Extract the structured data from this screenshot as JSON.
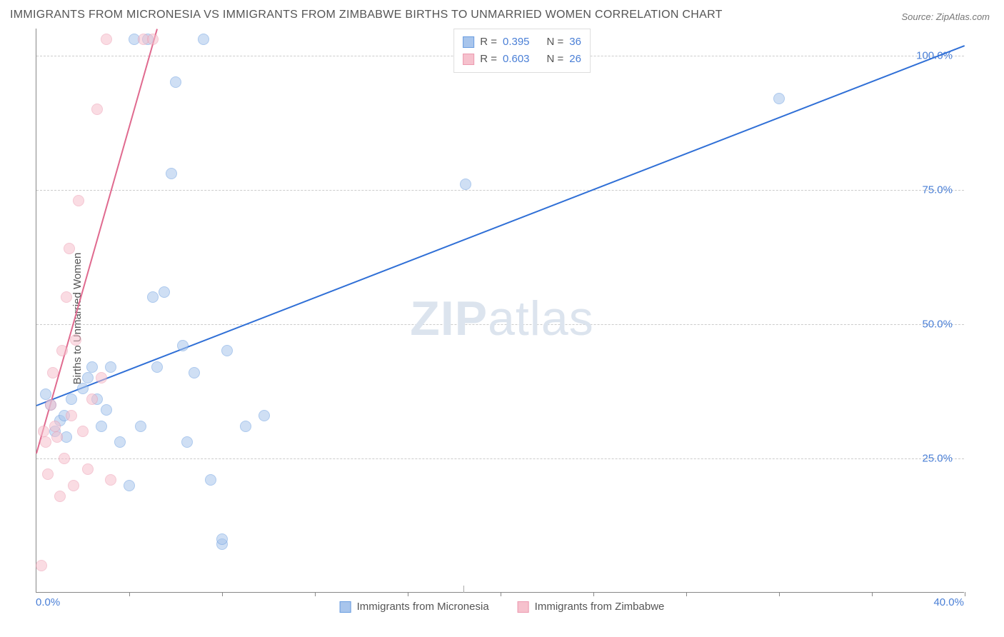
{
  "title": "IMMIGRANTS FROM MICRONESIA VS IMMIGRANTS FROM ZIMBABWE BIRTHS TO UNMARRIED WOMEN CORRELATION CHART",
  "source": "Source: ZipAtlas.com",
  "ylabel": "Births to Unmarried Women",
  "watermark_zip": "ZIP",
  "watermark_atlas": "atlas",
  "chart": {
    "type": "scatter",
    "xlim": [
      0,
      40
    ],
    "ylim": [
      0,
      105
    ],
    "x_tick_min_label": "0.0%",
    "x_tick_max_label": "40.0%",
    "y_ticks": [
      25,
      50,
      75,
      100
    ],
    "y_tick_labels": [
      "25.0%",
      "50.0%",
      "75.0%",
      "100.0%"
    ],
    "x_tick_positions_pct": [
      0,
      10,
      20,
      30,
      40,
      50,
      60,
      70,
      80,
      90,
      100
    ],
    "grid_color": "#cccccc",
    "background_color": "#ffffff",
    "point_radius": 8,
    "point_opacity": 0.55,
    "series": [
      {
        "name": "Immigrants from Micronesia",
        "label": "Immigrants from Micronesia",
        "color_fill": "#a8c5ec",
        "color_stroke": "#6a9de0",
        "r": "0.395",
        "n": "36",
        "trend": {
          "x1": 0,
          "y1": 35,
          "x2": 40,
          "y2": 102,
          "color": "#2f6fd6",
          "width": 2
        },
        "points": [
          [
            0.4,
            37
          ],
          [
            0.6,
            35
          ],
          [
            0.8,
            30
          ],
          [
            1.0,
            32
          ],
          [
            1.2,
            33
          ],
          [
            1.3,
            29
          ],
          [
            1.5,
            36
          ],
          [
            2.0,
            38
          ],
          [
            2.2,
            40
          ],
          [
            2.4,
            42
          ],
          [
            2.6,
            36
          ],
          [
            2.8,
            31
          ],
          [
            3.0,
            34
          ],
          [
            3.2,
            42
          ],
          [
            3.6,
            28
          ],
          [
            4.0,
            20
          ],
          [
            4.2,
            103
          ],
          [
            4.5,
            31
          ],
          [
            4.8,
            103
          ],
          [
            5.0,
            55
          ],
          [
            5.2,
            42
          ],
          [
            5.5,
            56
          ],
          [
            5.8,
            78
          ],
          [
            6.0,
            95
          ],
          [
            6.3,
            46
          ],
          [
            6.5,
            28
          ],
          [
            6.8,
            41
          ],
          [
            7.2,
            103
          ],
          [
            7.5,
            21
          ],
          [
            8.0,
            9
          ],
          [
            8.0,
            10
          ],
          [
            8.2,
            45
          ],
          [
            9.0,
            31
          ],
          [
            9.8,
            33
          ],
          [
            18.5,
            76
          ],
          [
            32.0,
            92
          ]
        ]
      },
      {
        "name": "Immigrants from Zimbabwe",
        "label": "Immigrants from Zimbabwe",
        "color_fill": "#f6c1cd",
        "color_stroke": "#ec9ab0",
        "r": "0.603",
        "n": "26",
        "trend": {
          "x1": 0,
          "y1": 26,
          "x2": 5.2,
          "y2": 105,
          "color": "#e06a8f",
          "width": 2
        },
        "points": [
          [
            0.2,
            5
          ],
          [
            0.3,
            30
          ],
          [
            0.4,
            28
          ],
          [
            0.5,
            22
          ],
          [
            0.6,
            35
          ],
          [
            0.7,
            41
          ],
          [
            0.8,
            31
          ],
          [
            0.9,
            29
          ],
          [
            1.0,
            18
          ],
          [
            1.1,
            45
          ],
          [
            1.2,
            25
          ],
          [
            1.3,
            55
          ],
          [
            1.4,
            64
          ],
          [
            1.5,
            33
          ],
          [
            1.6,
            20
          ],
          [
            1.7,
            47
          ],
          [
            1.8,
            73
          ],
          [
            2.0,
            30
          ],
          [
            2.2,
            23
          ],
          [
            2.4,
            36
          ],
          [
            2.6,
            90
          ],
          [
            2.8,
            40
          ],
          [
            3.0,
            103
          ],
          [
            3.2,
            21
          ],
          [
            4.6,
            103
          ],
          [
            5.0,
            103
          ]
        ]
      }
    ]
  },
  "legend_top_rows": [
    {
      "swatch_fill": "#a8c5ec",
      "swatch_stroke": "#6a9de0",
      "r": "0.395",
      "n": "36"
    },
    {
      "swatch_fill": "#f6c1cd",
      "swatch_stroke": "#ec9ab0",
      "r": "0.603",
      "n": "26"
    }
  ]
}
